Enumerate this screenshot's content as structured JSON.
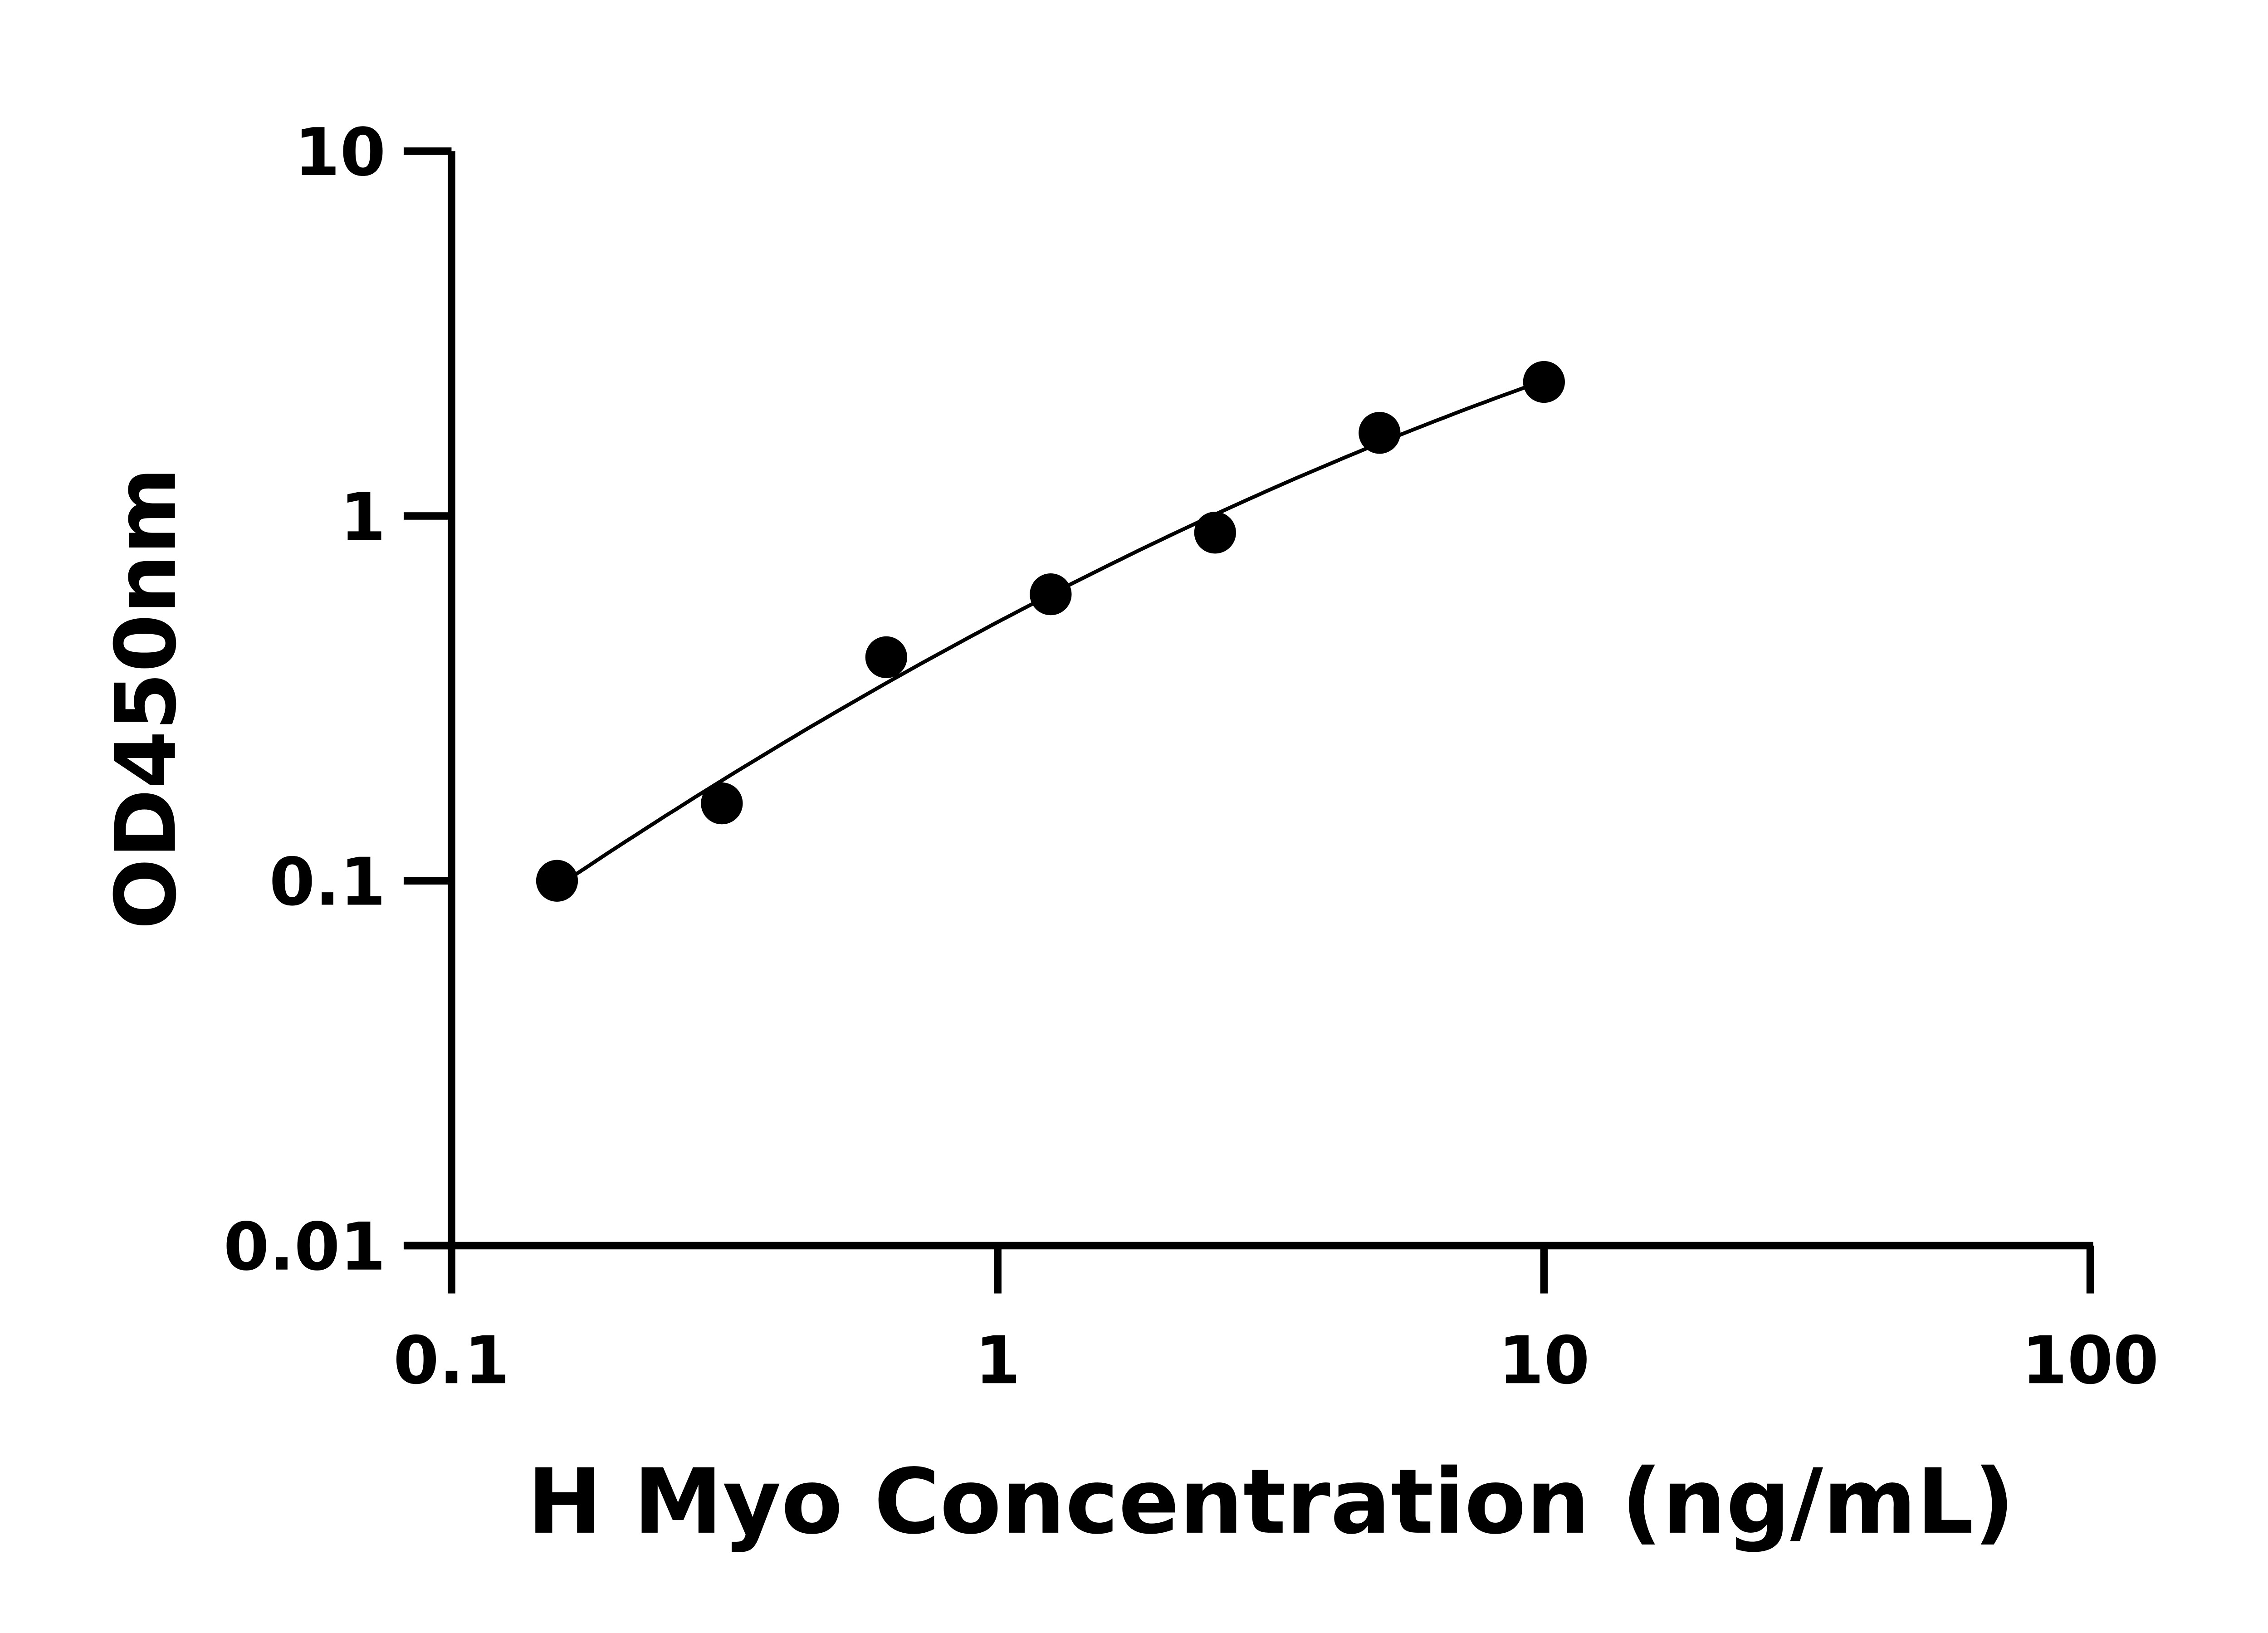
{
  "chart_data": {
    "type": "scatter",
    "title": "",
    "xlabel": "H Myo Concentration (ng/mL)",
    "ylabel": "OD450nm",
    "xscale": "log",
    "yscale": "log",
    "xlim": [
      0.1,
      100
    ],
    "ylim": [
      0.01,
      10
    ],
    "xticks": [
      "0.1",
      "1",
      "10",
      "100"
    ],
    "yticks": [
      "0.01",
      "0.1",
      "1",
      "10"
    ],
    "grid": false,
    "legend": "none",
    "colors": {
      "points": "#000000",
      "curve": "#000000"
    },
    "series": [
      {
        "x": [
          0.156,
          0.3125,
          0.625,
          1.25,
          2.5,
          5,
          10
        ],
        "y": [
          0.1,
          0.163,
          0.41,
          0.61,
          0.9,
          1.69,
          2.33
        ],
        "fit_curve": true
      }
    ]
  }
}
